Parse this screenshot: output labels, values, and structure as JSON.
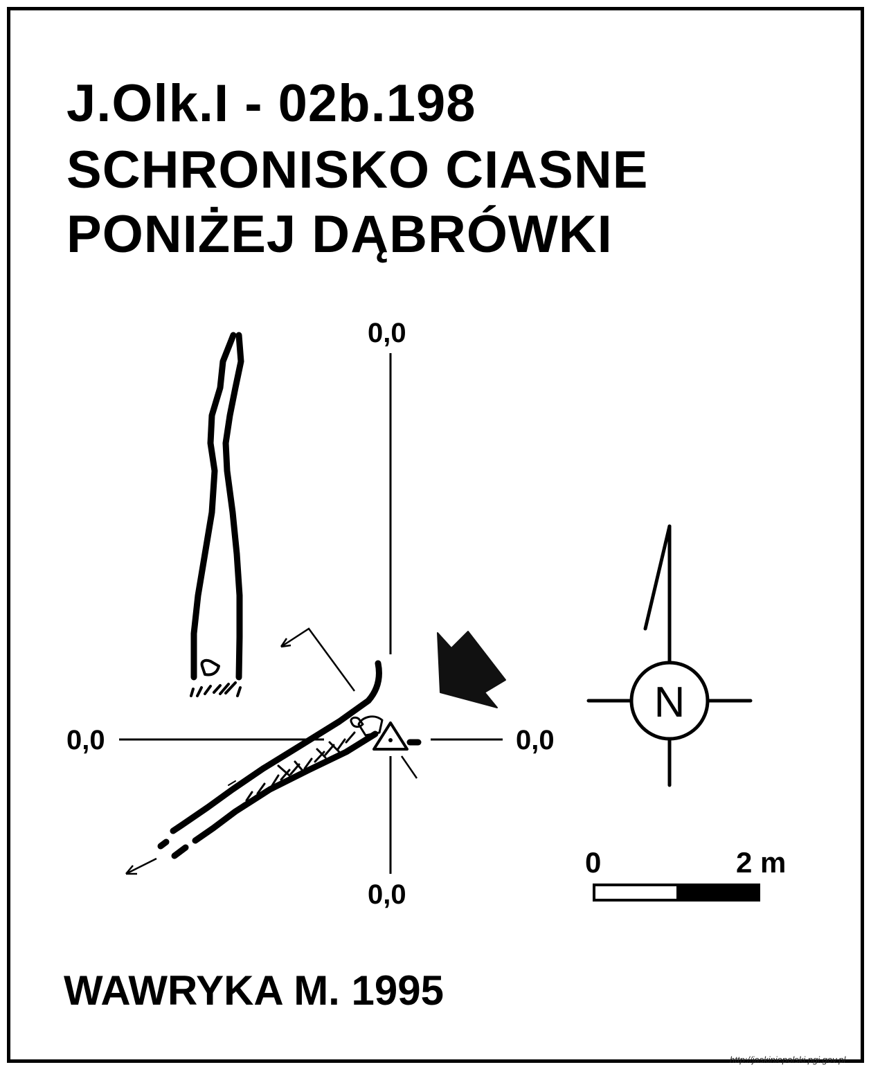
{
  "title": {
    "line1": "J.Olk.I - 02b.198",
    "line2": "SCHRONISKO CIASNE",
    "line3": "PONIŻEJ DĄBRÓWKI"
  },
  "section_axes": {
    "top_label": "0,0",
    "left_label": "0,0",
    "right_label": "0,0",
    "bottom_label": "0,0"
  },
  "north_arrow": {
    "letter": "N"
  },
  "scale_bar": {
    "start_label": "0",
    "end_label": "2 m"
  },
  "author": "WAWRYKA M. 1995",
  "source_url": "http://jaskiniepolski.pgi.gov.pl",
  "icons": [
    "north-arrow-icon",
    "entrance-arrow-icon",
    "datum-triangle-icon"
  ],
  "colors": {
    "ink": "#000000",
    "paper": "#ffffff"
  }
}
